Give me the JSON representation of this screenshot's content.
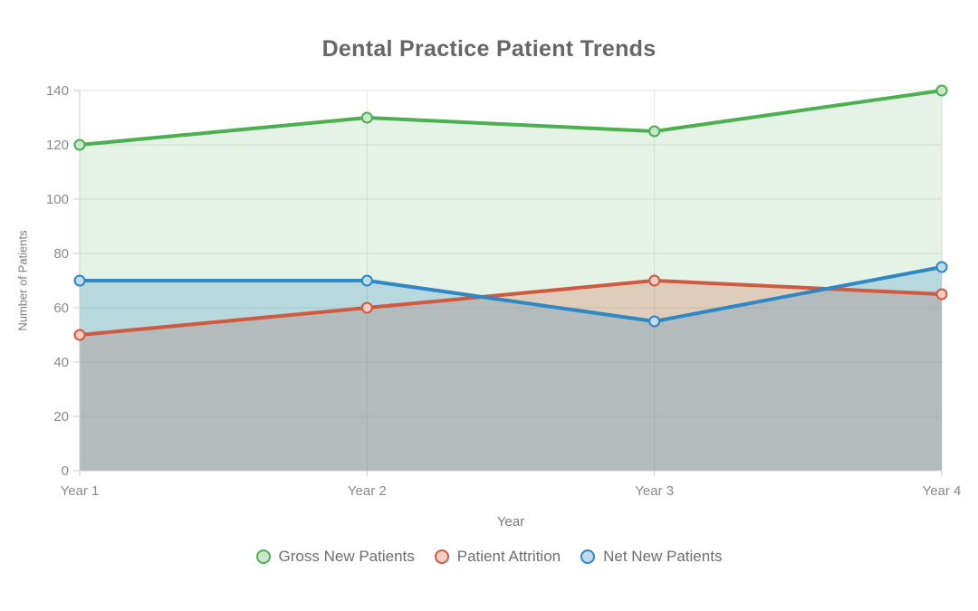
{
  "title": "Dental Practice Patient Trends",
  "chart_data": {
    "type": "area",
    "x": [
      "Year 1",
      "Year 2",
      "Year 3",
      "Year 4"
    ],
    "xlabel": "Year",
    "ylabel": "Number of Patients",
    "ylim": [
      0,
      140
    ],
    "yticks": [
      0,
      20,
      40,
      60,
      80,
      100,
      120,
      140
    ],
    "grid": true,
    "legend_position": "bottom",
    "series": [
      {
        "name": "Gross New Patients",
        "values": [
          120,
          130,
          125,
          140
        ],
        "color": "#4CAF50",
        "fill": "rgba(76, 175, 80, 0.15)",
        "marker_fill": "#c9e7ca"
      },
      {
        "name": "Patient Attrition",
        "values": [
          50,
          60,
          70,
          65
        ],
        "color": "#D05A40",
        "fill": "rgba(208, 90, 64, 0.25)",
        "marker_fill": "#f1cdc5"
      },
      {
        "name": "Net New Patients",
        "values": [
          70,
          70,
          55,
          75
        ],
        "color": "#2F87C3",
        "fill": "rgba(47, 135, 195, 0.25)",
        "marker_fill": "#c0dbed"
      }
    ],
    "grid_color": "#e7e7e7",
    "axis_color": "#cccccc"
  }
}
